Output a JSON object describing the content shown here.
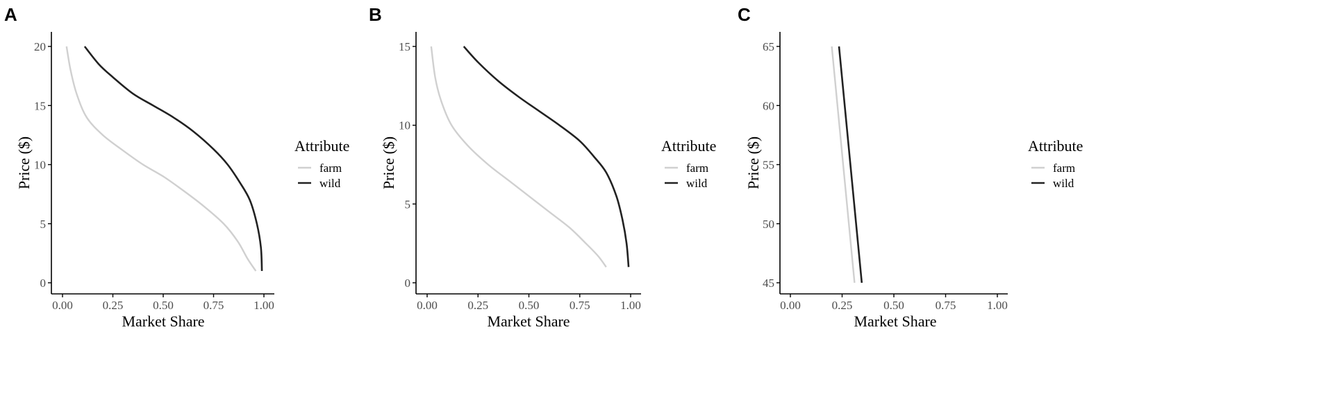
{
  "chart_data": [
    {
      "panel": "A",
      "type": "line",
      "xlabel": "Market Share",
      "ylabel": "Price ($)",
      "xlim": [
        0,
        1
      ],
      "ylim": [
        0,
        20
      ],
      "x_ticks": [
        "0.00",
        "0.25",
        "0.50",
        "0.75",
        "1.00"
      ],
      "y_ticks": [
        "0",
        "5",
        "10",
        "15",
        "20"
      ],
      "legend": {
        "title": "Attribute",
        "placement": "right",
        "entries": [
          "farm",
          "wild"
        ]
      },
      "grid": false,
      "series": [
        {
          "name": "farm",
          "color": "#d0d0d0",
          "points": [
            [
              0.02,
              20
            ],
            [
              0.04,
              18
            ],
            [
              0.07,
              16
            ],
            [
              0.12,
              14
            ],
            [
              0.2,
              12.5
            ],
            [
              0.3,
              11.2
            ],
            [
              0.4,
              10
            ],
            [
              0.5,
              9
            ],
            [
              0.6,
              7.8
            ],
            [
              0.7,
              6.5
            ],
            [
              0.8,
              5
            ],
            [
              0.87,
              3.5
            ],
            [
              0.92,
              2
            ],
            [
              0.96,
              1
            ]
          ]
        },
        {
          "name": "wild",
          "color": "#222222",
          "points": [
            [
              0.11,
              20
            ],
            [
              0.18,
              18.5
            ],
            [
              0.25,
              17.4
            ],
            [
              0.35,
              16
            ],
            [
              0.45,
              15
            ],
            [
              0.55,
              14
            ],
            [
              0.65,
              12.8
            ],
            [
              0.75,
              11.3
            ],
            [
              0.82,
              10
            ],
            [
              0.88,
              8.5
            ],
            [
              0.93,
              7
            ],
            [
              0.965,
              5
            ],
            [
              0.985,
              3
            ],
            [
              0.99,
              1
            ]
          ]
        }
      ]
    },
    {
      "panel": "B",
      "type": "line",
      "xlabel": "Market Share",
      "ylabel": "Price ($)",
      "xlim": [
        0,
        1
      ],
      "ylim": [
        0,
        15
      ],
      "x_ticks": [
        "0.00",
        "0.25",
        "0.50",
        "0.75",
        "1.00"
      ],
      "y_ticks": [
        "0",
        "5",
        "10",
        "15"
      ],
      "legend": {
        "title": "Attribute",
        "placement": "right",
        "entries": [
          "farm",
          "wild"
        ]
      },
      "grid": false,
      "series": [
        {
          "name": "farm",
          "color": "#d0d0d0",
          "points": [
            [
              0.02,
              15
            ],
            [
              0.04,
              13
            ],
            [
              0.07,
              11.5
            ],
            [
              0.12,
              10
            ],
            [
              0.2,
              8.7
            ],
            [
              0.3,
              7.5
            ],
            [
              0.4,
              6.5
            ],
            [
              0.5,
              5.5
            ],
            [
              0.6,
              4.5
            ],
            [
              0.7,
              3.5
            ],
            [
              0.78,
              2.5
            ],
            [
              0.84,
              1.7
            ],
            [
              0.88,
              1
            ]
          ]
        },
        {
          "name": "wild",
          "color": "#222222",
          "points": [
            [
              0.18,
              15
            ],
            [
              0.25,
              14
            ],
            [
              0.35,
              12.8
            ],
            [
              0.45,
              11.8
            ],
            [
              0.55,
              10.9
            ],
            [
              0.65,
              10
            ],
            [
              0.75,
              9
            ],
            [
              0.82,
              8
            ],
            [
              0.88,
              7
            ],
            [
              0.93,
              5.5
            ],
            [
              0.96,
              4
            ],
            [
              0.98,
              2.5
            ],
            [
              0.99,
              1
            ]
          ]
        }
      ]
    },
    {
      "panel": "C",
      "type": "line",
      "xlabel": "Market Share",
      "ylabel": "Price ($)",
      "xlim": [
        0,
        1
      ],
      "ylim": [
        45,
        65
      ],
      "x_ticks": [
        "0.00",
        "0.25",
        "0.50",
        "0.75",
        "1.00"
      ],
      "y_ticks": [
        "45",
        "50",
        "55",
        "60",
        "65"
      ],
      "legend": {
        "title": "Attribute",
        "placement": "right",
        "entries": [
          "farm",
          "wild"
        ]
      },
      "grid": false,
      "series": [
        {
          "name": "farm",
          "color": "#d0d0d0",
          "points": [
            [
              0.2,
              65
            ],
            [
              0.31,
              45
            ]
          ]
        },
        {
          "name": "wild",
          "color": "#222222",
          "points": [
            [
              0.235,
              65
            ],
            [
              0.345,
              45
            ]
          ]
        }
      ]
    }
  ]
}
